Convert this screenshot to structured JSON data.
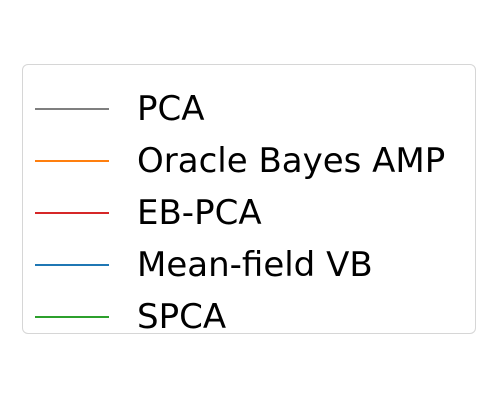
{
  "chart_data": {
    "type": "line",
    "title": "",
    "xlabel": "",
    "ylabel": "",
    "legend_placement": "center",
    "legend_only": true,
    "series": [
      {
        "name": "PCA",
        "color": "#7f7f7f",
        "values": []
      },
      {
        "name": "Oracle Bayes AMP",
        "color": "#ff7f0e",
        "values": []
      },
      {
        "name": "EB-PCA",
        "color": "#d62728",
        "values": []
      },
      {
        "name": "Mean-field VB",
        "color": "#1f77b4",
        "values": []
      },
      {
        "name": "SPCA",
        "color": "#2ca02c",
        "values": []
      }
    ]
  }
}
